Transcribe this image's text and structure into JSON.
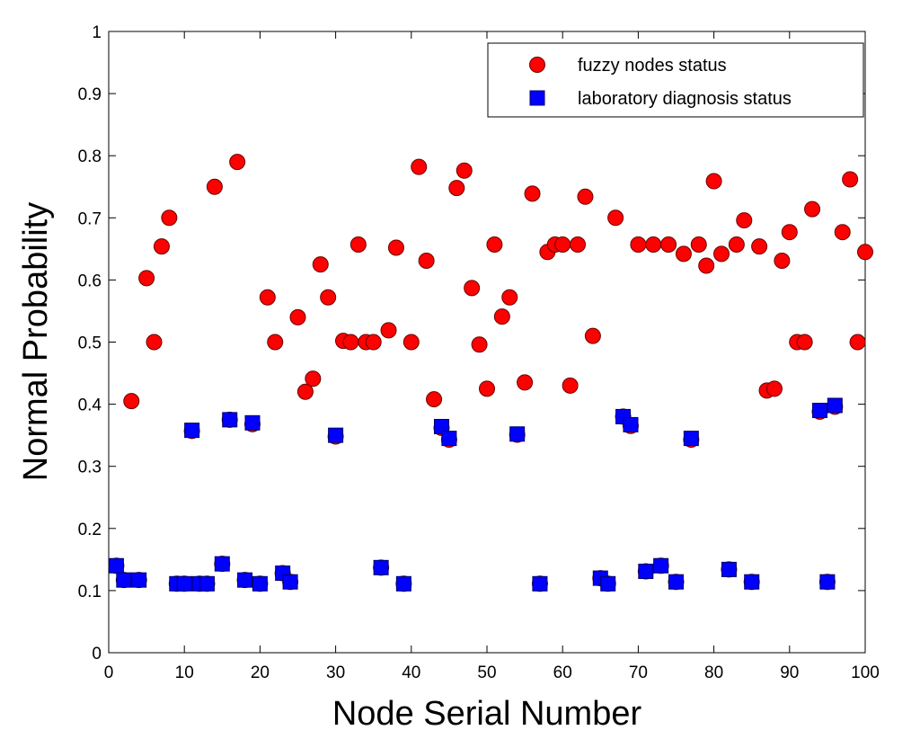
{
  "chart_data": {
    "type": "scatter",
    "title": "",
    "xlabel": "Node Serial Number",
    "ylabel": "Normal Probability",
    "xlim": [
      0,
      100
    ],
    "ylim": [
      0,
      1
    ],
    "xticks": [
      0,
      10,
      20,
      30,
      40,
      50,
      60,
      70,
      80,
      90,
      100
    ],
    "yticks": [
      0,
      0.1,
      0.2,
      0.3,
      0.4,
      0.5,
      0.6,
      0.7,
      0.8,
      0.9,
      1
    ],
    "ytick_labels": [
      "0",
      "0.1",
      "0.2",
      "0.3",
      "0.4",
      "0.5",
      "0.6",
      "0.7",
      "0.8",
      "0.9",
      "1"
    ],
    "legend_position": "top-right",
    "grid": false,
    "series": [
      {
        "name": "fuzzy nodes status",
        "marker": "circle",
        "color": "#ff0000",
        "points": [
          [
            1,
            0.14
          ],
          [
            2,
            0.117
          ],
          [
            3,
            0.405
          ],
          [
            4,
            0.117
          ],
          [
            5,
            0.603
          ],
          [
            6,
            0.5
          ],
          [
            7,
            0.654
          ],
          [
            8,
            0.7
          ],
          [
            9,
            0.111
          ],
          [
            10,
            0.111
          ],
          [
            11,
            0.357
          ],
          [
            12,
            0.111
          ],
          [
            13,
            0.111
          ],
          [
            14,
            0.75
          ],
          [
            15,
            0.143
          ],
          [
            16,
            0.375
          ],
          [
            17,
            0.79
          ],
          [
            18,
            0.117
          ],
          [
            19,
            0.368
          ],
          [
            20,
            0.111
          ],
          [
            21,
            0.572
          ],
          [
            22,
            0.5
          ],
          [
            23,
            0.128
          ],
          [
            24,
            0.114
          ],
          [
            25,
            0.54
          ],
          [
            26,
            0.42
          ],
          [
            27,
            0.441
          ],
          [
            28,
            0.625
          ],
          [
            29,
            0.572
          ],
          [
            30,
            0.348
          ],
          [
            31,
            0.502
          ],
          [
            32,
            0.5
          ],
          [
            33,
            0.657
          ],
          [
            34,
            0.5
          ],
          [
            35,
            0.5
          ],
          [
            36,
            0.137
          ],
          [
            37,
            0.519
          ],
          [
            38,
            0.652
          ],
          [
            39,
            0.111
          ],
          [
            40,
            0.5
          ],
          [
            41,
            0.782
          ],
          [
            42,
            0.631
          ],
          [
            43,
            0.408
          ],
          [
            44,
            0.362
          ],
          [
            45,
            0.343
          ],
          [
            46,
            0.748
          ],
          [
            47,
            0.776
          ],
          [
            48,
            0.587
          ],
          [
            49,
            0.496
          ],
          [
            50,
            0.425
          ],
          [
            51,
            0.657
          ],
          [
            52,
            0.541
          ],
          [
            53,
            0.572
          ],
          [
            54,
            0.351
          ],
          [
            55,
            0.435
          ],
          [
            56,
            0.739
          ],
          [
            57,
            0.111
          ],
          [
            58,
            0.645
          ],
          [
            59,
            0.657
          ],
          [
            60,
            0.657
          ],
          [
            61,
            0.43
          ],
          [
            62,
            0.657
          ],
          [
            63,
            0.734
          ],
          [
            64,
            0.51
          ],
          [
            65,
            0.12
          ],
          [
            66,
            0.111
          ],
          [
            67,
            0.7
          ],
          [
            68,
            0.38
          ],
          [
            69,
            0.365
          ],
          [
            70,
            0.657
          ],
          [
            71,
            0.131
          ],
          [
            72,
            0.657
          ],
          [
            73,
            0.14
          ],
          [
            74,
            0.657
          ],
          [
            75,
            0.114
          ],
          [
            76,
            0.642
          ],
          [
            77,
            0.343
          ],
          [
            78,
            0.657
          ],
          [
            79,
            0.623
          ],
          [
            80,
            0.759
          ],
          [
            81,
            0.642
          ],
          [
            82,
            0.134
          ],
          [
            83,
            0.657
          ],
          [
            84,
            0.696
          ],
          [
            85,
            0.114
          ],
          [
            86,
            0.654
          ],
          [
            87,
            0.422
          ],
          [
            88,
            0.425
          ],
          [
            89,
            0.631
          ],
          [
            90,
            0.677
          ],
          [
            91,
            0.5
          ],
          [
            92,
            0.5
          ],
          [
            93,
            0.714
          ],
          [
            94,
            0.388
          ],
          [
            95,
            0.114
          ],
          [
            96,
            0.396
          ],
          [
            97,
            0.677
          ],
          [
            98,
            0.762
          ],
          [
            99,
            0.5
          ],
          [
            100,
            0.645
          ]
        ]
      },
      {
        "name": "laboratory diagnosis status",
        "marker": "square",
        "color": "#0000ff",
        "points": [
          [
            1,
            0.14
          ],
          [
            2,
            0.117
          ],
          [
            4,
            0.117
          ],
          [
            9,
            0.111
          ],
          [
            10,
            0.111
          ],
          [
            11,
            0.358
          ],
          [
            12,
            0.111
          ],
          [
            13,
            0.111
          ],
          [
            15,
            0.143
          ],
          [
            16,
            0.375
          ],
          [
            18,
            0.117
          ],
          [
            19,
            0.37
          ],
          [
            20,
            0.111
          ],
          [
            23,
            0.128
          ],
          [
            24,
            0.114
          ],
          [
            30,
            0.35
          ],
          [
            36,
            0.137
          ],
          [
            39,
            0.111
          ],
          [
            44,
            0.364
          ],
          [
            45,
            0.345
          ],
          [
            54,
            0.352
          ],
          [
            57,
            0.111
          ],
          [
            65,
            0.12
          ],
          [
            66,
            0.111
          ],
          [
            68,
            0.38
          ],
          [
            69,
            0.367
          ],
          [
            71,
            0.131
          ],
          [
            73,
            0.14
          ],
          [
            75,
            0.114
          ],
          [
            77,
            0.345
          ],
          [
            82,
            0.134
          ],
          [
            85,
            0.114
          ],
          [
            94,
            0.39
          ],
          [
            95,
            0.114
          ],
          [
            96,
            0.398
          ]
        ]
      }
    ]
  }
}
